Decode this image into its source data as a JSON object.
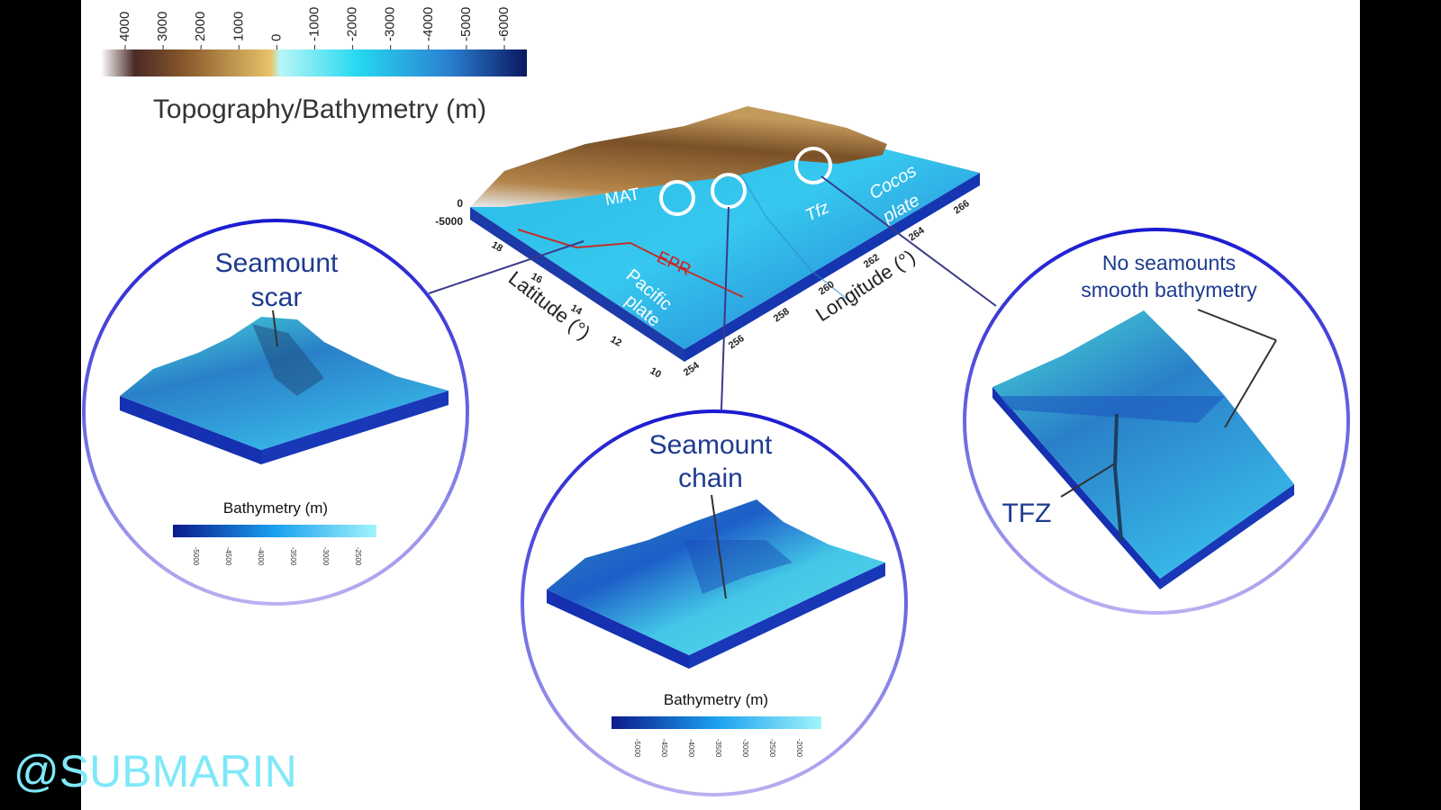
{
  "colorbar": {
    "ticks": [
      4000,
      3000,
      2000,
      1000,
      0,
      -1000,
      -2000,
      -3000,
      -4000,
      -5000,
      -6000
    ],
    "title": "Topography/Bathymetry (m)"
  },
  "map": {
    "z_ticks": [
      0,
      -5000
    ],
    "latitude_label": "Latitude (°)",
    "latitude_ticks": [
      18,
      16,
      14,
      12,
      10
    ],
    "longitude_label": "Longitude (°)",
    "longitude_ticks": [
      254,
      256,
      258,
      260,
      262,
      264,
      266
    ],
    "labels": {
      "mat": "MAT",
      "tfz": "Tfz",
      "cocos": [
        "Cocos",
        "plate"
      ],
      "epr": "EPR",
      "pacific": [
        "Pacific",
        "plate"
      ]
    }
  },
  "insets": [
    {
      "title": [
        "Seamount",
        "scar"
      ],
      "legend_title": "Bathymetry (m)",
      "legend_ticks": [
        -5000,
        -4500,
        -4000,
        -3500,
        -3000,
        -2500
      ]
    },
    {
      "title": [
        "Seamount",
        "chain"
      ],
      "legend_title": "Bathymetry (m)",
      "legend_ticks": [
        -5000,
        -4500,
        -4000,
        -3500,
        -3000,
        -2500,
        -2000
      ]
    },
    {
      "title": [
        "No seamounts",
        "smooth bathymetry"
      ],
      "annotation": "TFZ"
    }
  ],
  "watermark": "@SUBMARIN"
}
